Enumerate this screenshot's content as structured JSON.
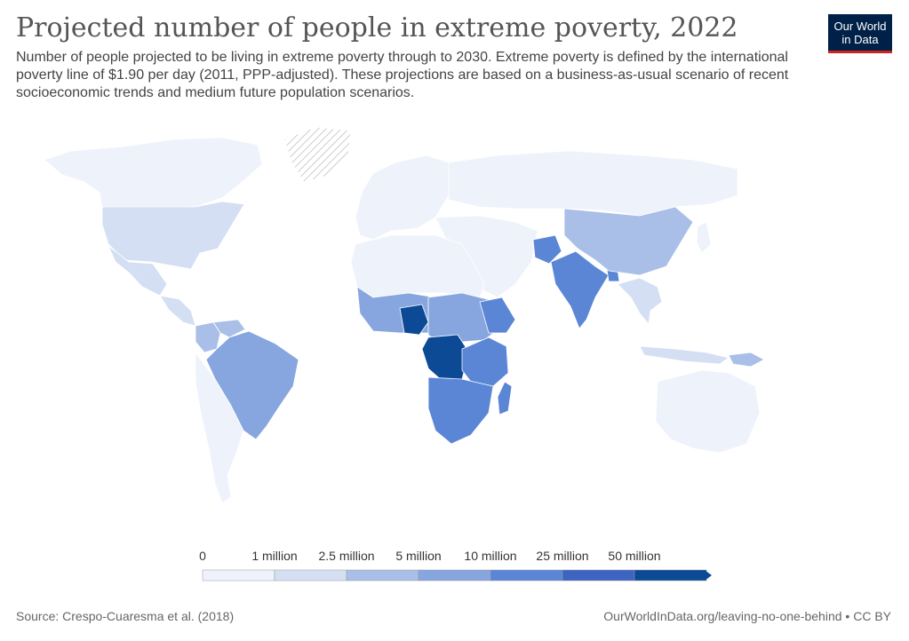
{
  "title": "Projected number of people in extreme poverty, 2022",
  "subtitle": "Number of people projected to be living in extreme poverty through to 2030. Extreme poverty is defined by the international poverty line of $1.90 per day (2011, PPP-adjusted). These projections are based on a business-as-usual scenario of recent socioeconomic trends and medium future population scenarios.",
  "logo": {
    "line1": "Our World",
    "line2": "in Data",
    "bg": "#002147",
    "accent": "#ce261e"
  },
  "legend": {
    "labels": [
      "0",
      "1 million",
      "2.5 million",
      "5 million",
      "10 million",
      "25 million",
      "50 million"
    ],
    "colors": [
      "#eef2fb",
      "#d4dff4",
      "#a9bfe8",
      "#87a6df",
      "#5b86d6",
      "#3d64c0",
      "#0c4a96"
    ]
  },
  "map": {
    "no_data_pattern": "diagonal-hatch",
    "regions": [
      {
        "name": "North America",
        "level": 0
      },
      {
        "name": "United States",
        "level": 1
      },
      {
        "name": "Mexico",
        "level": 1
      },
      {
        "name": "Central America",
        "level": 1
      },
      {
        "name": "Greenland",
        "level": -1
      },
      {
        "name": "Colombia",
        "level": 2
      },
      {
        "name": "Venezuela",
        "level": 2
      },
      {
        "name": "Brazil",
        "level": 3
      },
      {
        "name": "Southern South America",
        "level": 0
      },
      {
        "name": "Europe",
        "level": 0
      },
      {
        "name": "Russia",
        "level": 0
      },
      {
        "name": "Middle East",
        "level": 0
      },
      {
        "name": "North Africa",
        "level": 0
      },
      {
        "name": "West Africa",
        "level": 3
      },
      {
        "name": "Nigeria",
        "level": 6
      },
      {
        "name": "Central Africa",
        "level": 3
      },
      {
        "name": "DR Congo",
        "level": 6
      },
      {
        "name": "Ethiopia",
        "level": 4
      },
      {
        "name": "Tanzania",
        "level": 4
      },
      {
        "name": "Southern Africa",
        "level": 4
      },
      {
        "name": "Madagascar",
        "level": 4
      },
      {
        "name": "Afghanistan",
        "level": 4
      },
      {
        "name": "India",
        "level": 4
      },
      {
        "name": "Bangladesh",
        "level": 4
      },
      {
        "name": "China",
        "level": 2
      },
      {
        "name": "Southeast Asia",
        "level": 1
      },
      {
        "name": "Indonesia",
        "level": 1
      },
      {
        "name": "Papua New Guinea",
        "level": 2
      },
      {
        "name": "Australia",
        "level": 0
      },
      {
        "name": "Japan",
        "level": 0
      }
    ]
  },
  "footer": {
    "source": "Source: Crespo-Cuaresma et al. (2018)",
    "url": "OurWorldInData.org/leaving-no-one-behind • CC BY"
  }
}
